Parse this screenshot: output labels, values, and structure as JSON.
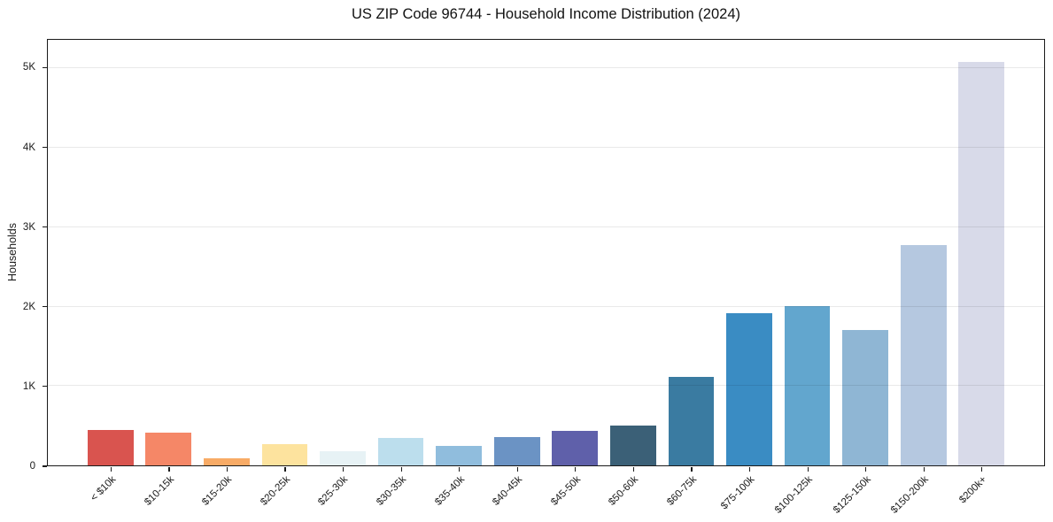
{
  "chart_data": {
    "type": "bar",
    "title": "US ZIP Code 96744 - Household Income Distribution (2024)",
    "xlabel": "",
    "ylabel": "Households",
    "categories": [
      "< $10k",
      "$10-15k",
      "$15-20k",
      "$20-25k",
      "$25-30k",
      "$30-35k",
      "$35-40k",
      "$40-45k",
      "$45-50k",
      "$50-60k",
      "$60-75k",
      "$75-100k",
      "$100-125k",
      "$125-150k",
      "$150-200k",
      "$200k+"
    ],
    "values": [
      450,
      415,
      85,
      265,
      180,
      350,
      250,
      355,
      440,
      500,
      1120,
      1920,
      2010,
      1710,
      2770,
      5080
    ],
    "bar_colors": [
      "#d9544f",
      "#f58767",
      "#f8ab66",
      "#fde39e",
      "#e7f2f5",
      "#bcdeed",
      "#90bddd",
      "#6b93c4",
      "#5f60aa",
      "#3b6077",
      "#3a7ba1",
      "#3a8cc3",
      "#62a6ce",
      "#8fb6d4",
      "#b5c8e0",
      "#d8dae9"
    ],
    "y_ticks": [
      {
        "value": 0,
        "label": "0"
      },
      {
        "value": 1000,
        "label": "1K"
      },
      {
        "value": 2000,
        "label": "2K"
      },
      {
        "value": 3000,
        "label": "3K"
      },
      {
        "value": 4000,
        "label": "4K"
      },
      {
        "value": 5000,
        "label": "5K"
      }
    ],
    "ylim": [
      0,
      5360
    ],
    "grid": "horizontal",
    "legend": "none",
    "background": "#ffffff",
    "axis_color": "#1a1a1a",
    "gridline_color": "#e6e6e6",
    "text_color": "#1a1a1a"
  }
}
